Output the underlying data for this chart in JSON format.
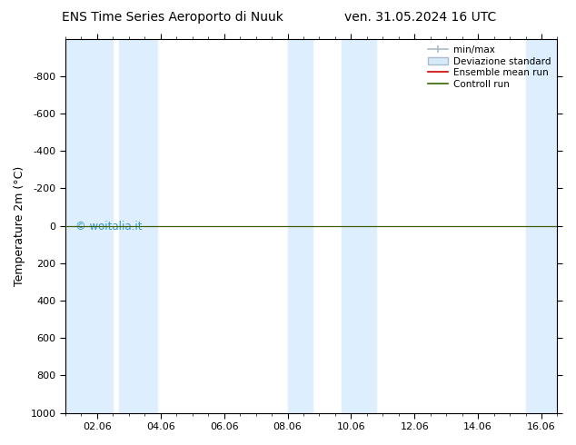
{
  "title_left": "ENS Time Series Aeroporto di Nuuk",
  "title_right": "ven. 31.05.2024 16 UTC",
  "ylabel": "Temperature 2m (°C)",
  "ylim_top": -1000,
  "ylim_bottom": 1000,
  "yticks": [
    -800,
    -600,
    -400,
    -200,
    0,
    200,
    400,
    600,
    800,
    1000
  ],
  "xlim_start": 0.0,
  "xlim_end": 15.5,
  "xtick_positions": [
    1,
    3,
    5,
    7,
    9,
    11,
    13,
    15
  ],
  "xtick_labels": [
    "02.06",
    "04.06",
    "06.06",
    "08.06",
    "10.06",
    "12.06",
    "14.06",
    "16.06"
  ],
  "shaded_bands": [
    [
      0.0,
      1.5
    ],
    [
      1.7,
      2.9
    ],
    [
      7.0,
      7.8
    ],
    [
      8.7,
      9.8
    ],
    [
      14.5,
      15.5
    ]
  ],
  "band_color": "#ddeeff",
  "green_line_color": "#336600",
  "red_line_color": "#cc0000",
  "legend_labels": [
    "min/max",
    "Deviazione standard",
    "Ensemble mean run",
    "Controll run"
  ],
  "watermark": "© woitalia.it",
  "watermark_color": "#3399cc",
  "background_color": "#ffffff",
  "border_color": "#000000",
  "title_fontsize": 10,
  "axis_fontsize": 9,
  "tick_fontsize": 8
}
